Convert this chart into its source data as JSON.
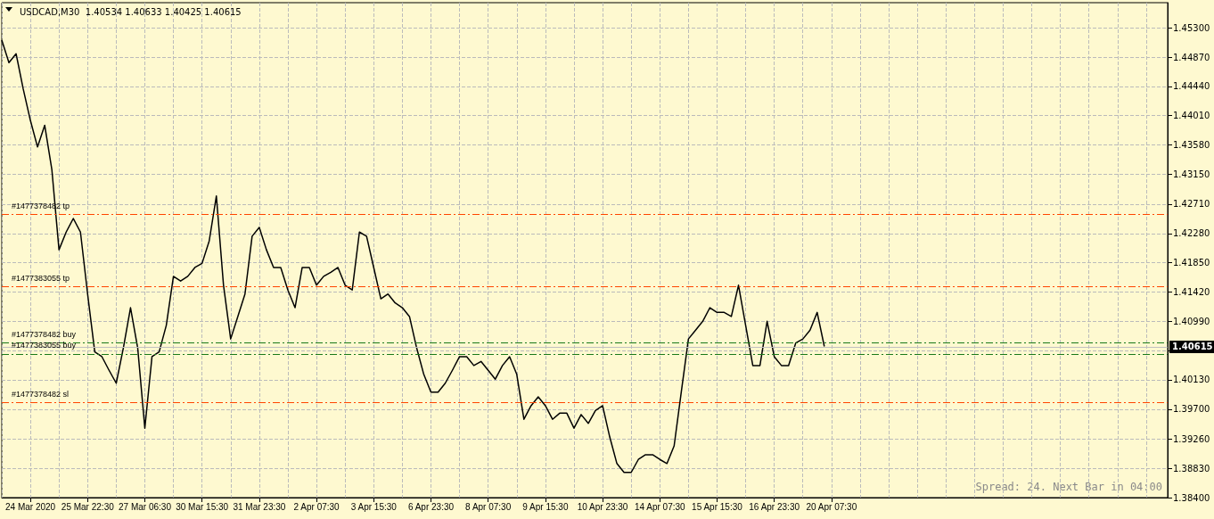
{
  "chart_data": {
    "type": "line",
    "title": "USDCAD,M30  1.40534 1.40633 1.40425 1.40615",
    "annotations": [
      "Spread: 24. Next Bar in 04:00"
    ],
    "categories": [
      null,
      null,
      null,
      null,
      "24 Mar 2020",
      null,
      null,
      null,
      null,
      null,
      null,
      null,
      "25 Mar 22:30",
      null,
      null,
      null,
      null,
      null,
      null,
      null,
      "27 Mar 06:30",
      null,
      null,
      null,
      null,
      null,
      null,
      null,
      "30 Mar 15:30",
      null,
      null,
      null,
      null,
      null,
      null,
      null,
      "31 Mar 23:30",
      null,
      null,
      null,
      null,
      null,
      null,
      null,
      "2 Apr 07:30",
      null,
      null,
      null,
      null,
      null,
      null,
      null,
      "3 Apr 15:30",
      null,
      null,
      null,
      null,
      null,
      null,
      null,
      "6 Apr 23:30",
      null,
      null,
      null,
      null,
      null,
      null,
      null,
      "8 Apr 07:30",
      null,
      null,
      null,
      null,
      null,
      null,
      null,
      "9 Apr 15:30",
      null,
      null,
      null,
      null,
      null,
      null,
      null,
      "10 Apr 23:30",
      null,
      null,
      null,
      null,
      null,
      null,
      null,
      "14 Apr 07:30",
      null,
      null,
      null,
      null,
      null,
      null,
      null,
      "15 Apr 15:30",
      null,
      null,
      null,
      null,
      null,
      null,
      null,
      "16 Apr 23:30",
      null,
      null,
      null,
      null,
      null,
      null,
      null,
      "20 Apr 07:30",
      null,
      null,
      null,
      null,
      null,
      null,
      null,
      null,
      null,
      null,
      null,
      null,
      null,
      null,
      null,
      null,
      null,
      null,
      null,
      null,
      null,
      null,
      null,
      null,
      null,
      null,
      null,
      null,
      null,
      null,
      null,
      null,
      null,
      null,
      null,
      null,
      null,
      null,
      null,
      null,
      null,
      null,
      null,
      null,
      null,
      null,
      null
    ],
    "series": [
      {
        "color": "#000000",
        "values": [
          1.4512,
          1.4479,
          1.4492,
          1.444,
          1.4394,
          1.4355,
          1.4387,
          1.4322,
          1.4204,
          1.423,
          1.425,
          1.423,
          1.4139,
          1.4054,
          1.4047,
          1.4027,
          1.4008,
          1.406,
          1.4119,
          1.406,
          1.3942,
          1.4047,
          1.4054,
          1.4093,
          1.4165,
          1.4158,
          1.4165,
          1.4178,
          1.4184,
          1.4217,
          1.4283,
          1.4152,
          1.4073,
          1.4106,
          1.4139,
          1.4224,
          1.4237,
          1.4204,
          1.4178,
          1.4178,
          1.4145,
          1.4119,
          1.4178,
          1.4178,
          1.4152,
          1.4165,
          1.4171,
          1.4178,
          1.4152,
          1.4145,
          1.423,
          1.4224,
          1.4178,
          1.4132,
          1.4139,
          1.4126,
          1.4119,
          1.4106,
          1.406,
          1.4021,
          1.3995,
          1.3995,
          1.4008,
          1.4027,
          1.4047,
          1.4047,
          1.4034,
          1.404,
          1.4027,
          1.4014,
          1.4034,
          1.4047,
          1.4021,
          1.3955,
          1.3975,
          1.3988,
          1.3975,
          1.3955,
          1.3964,
          1.3964,
          1.3942,
          1.3962,
          1.3949,
          1.3968,
          1.3975,
          1.3929,
          1.389,
          1.3877,
          1.3877,
          1.3896,
          1.3903,
          1.3903,
          1.3896,
          1.389,
          1.3916,
          1.3995,
          1.4073,
          1.4086,
          1.4099,
          1.4119,
          1.4112,
          1.4112,
          1.4106,
          1.4152,
          1.4093,
          1.4034,
          1.4034,
          1.4099,
          1.4047,
          1.4034,
          1.4034,
          1.4067,
          1.4073,
          1.4086,
          1.4112,
          1.4062,
          null,
          null,
          null,
          null,
          null,
          null,
          null,
          null,
          null,
          null,
          null,
          null,
          null,
          null,
          null,
          null,
          null,
          null,
          null,
          null,
          null,
          null,
          null,
          null,
          null,
          null,
          null,
          null,
          null,
          null,
          null,
          null,
          null,
          null,
          null,
          null,
          null,
          null,
          null,
          null,
          null,
          null,
          null,
          null,
          null,
          null,
          null,
          null
        ]
      }
    ],
    "ylim": [
      1.384,
      1.4567
    ],
    "yticks": [
      {
        "value": 1.453,
        "label": "1.45300"
      },
      {
        "value": 1.4487,
        "label": "1.44870"
      },
      {
        "value": 1.4444,
        "label": "1.44440"
      },
      {
        "value": 1.4401,
        "label": "1.44010"
      },
      {
        "value": 1.4358,
        "label": "1.43580"
      },
      {
        "value": 1.4315,
        "label": "1.43150"
      },
      {
        "value": 1.4271,
        "label": "1.42710"
      },
      {
        "value": 1.4228,
        "label": "1.42280"
      },
      {
        "value": 1.4185,
        "label": "1.41850"
      },
      {
        "value": 1.4142,
        "label": "1.41420"
      },
      {
        "value": 1.4099,
        "label": "1.40990"
      },
      {
        "value": 1.4056,
        "label": null
      },
      {
        "value": 1.4013,
        "label": "1.40130"
      },
      {
        "value": 1.397,
        "label": "1.39700"
      },
      {
        "value": 1.3926,
        "label": "1.39260"
      },
      {
        "value": 1.3883,
        "label": "1.38830"
      },
      {
        "value": 1.384,
        "label": "1.38400"
      }
    ],
    "ref_lines": [
      {
        "axis": "y",
        "value": 1.4256,
        "label": "#1477378482 tp",
        "color": "#ff4500",
        "line_style": "dashed"
      },
      {
        "axis": "y",
        "value": 1.415,
        "label": "#1477383055 tp",
        "color": "#ff4500",
        "line_style": "dashed"
      },
      {
        "axis": "y",
        "value": 1.4067,
        "label": "#1477378482 buy",
        "color": "#1a7a1a",
        "line_style": "dashed"
      },
      {
        "axis": "y",
        "value": 1.4051,
        "label": "#1477383055 buy",
        "color": "#1a7a1a",
        "line_style": "dashed"
      },
      {
        "axis": "y",
        "value": 1.398,
        "label": "#1477378482 sl",
        "color": "#ff4500",
        "line_style": "dashed"
      },
      {
        "axis": "y",
        "value": 1.40615,
        "label": "1.40615",
        "color": "#c0c0c0",
        "line_style": "solid"
      }
    ],
    "grid": true,
    "marker": "none",
    "line_style": "solid"
  }
}
